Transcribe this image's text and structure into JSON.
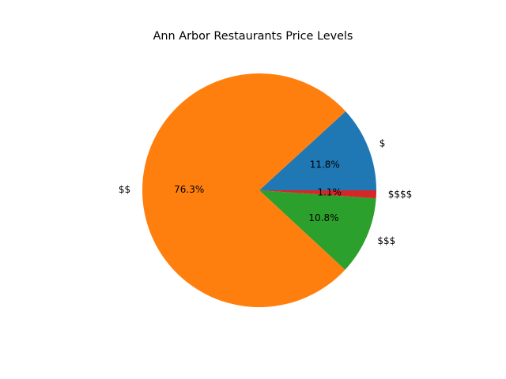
{
  "chart_data": {
    "type": "pie",
    "title": "Ann Arbor Restaurants Price Levels",
    "start_angle_deg": 0,
    "direction": "counterclockwise",
    "slices": [
      {
        "label": "$",
        "percent": 11.8,
        "pct_label": "11.8%",
        "color": "#1f77b4"
      },
      {
        "label": "$$",
        "percent": 76.3,
        "pct_label": "76.3%",
        "color": "#ff7f0e"
      },
      {
        "label": "$$$",
        "percent": 10.8,
        "pct_label": "10.8%",
        "color": "#2ca02c"
      },
      {
        "label": "$$$$",
        "percent": 1.1,
        "pct_label": "1.1%",
        "color": "#d62728"
      }
    ]
  }
}
